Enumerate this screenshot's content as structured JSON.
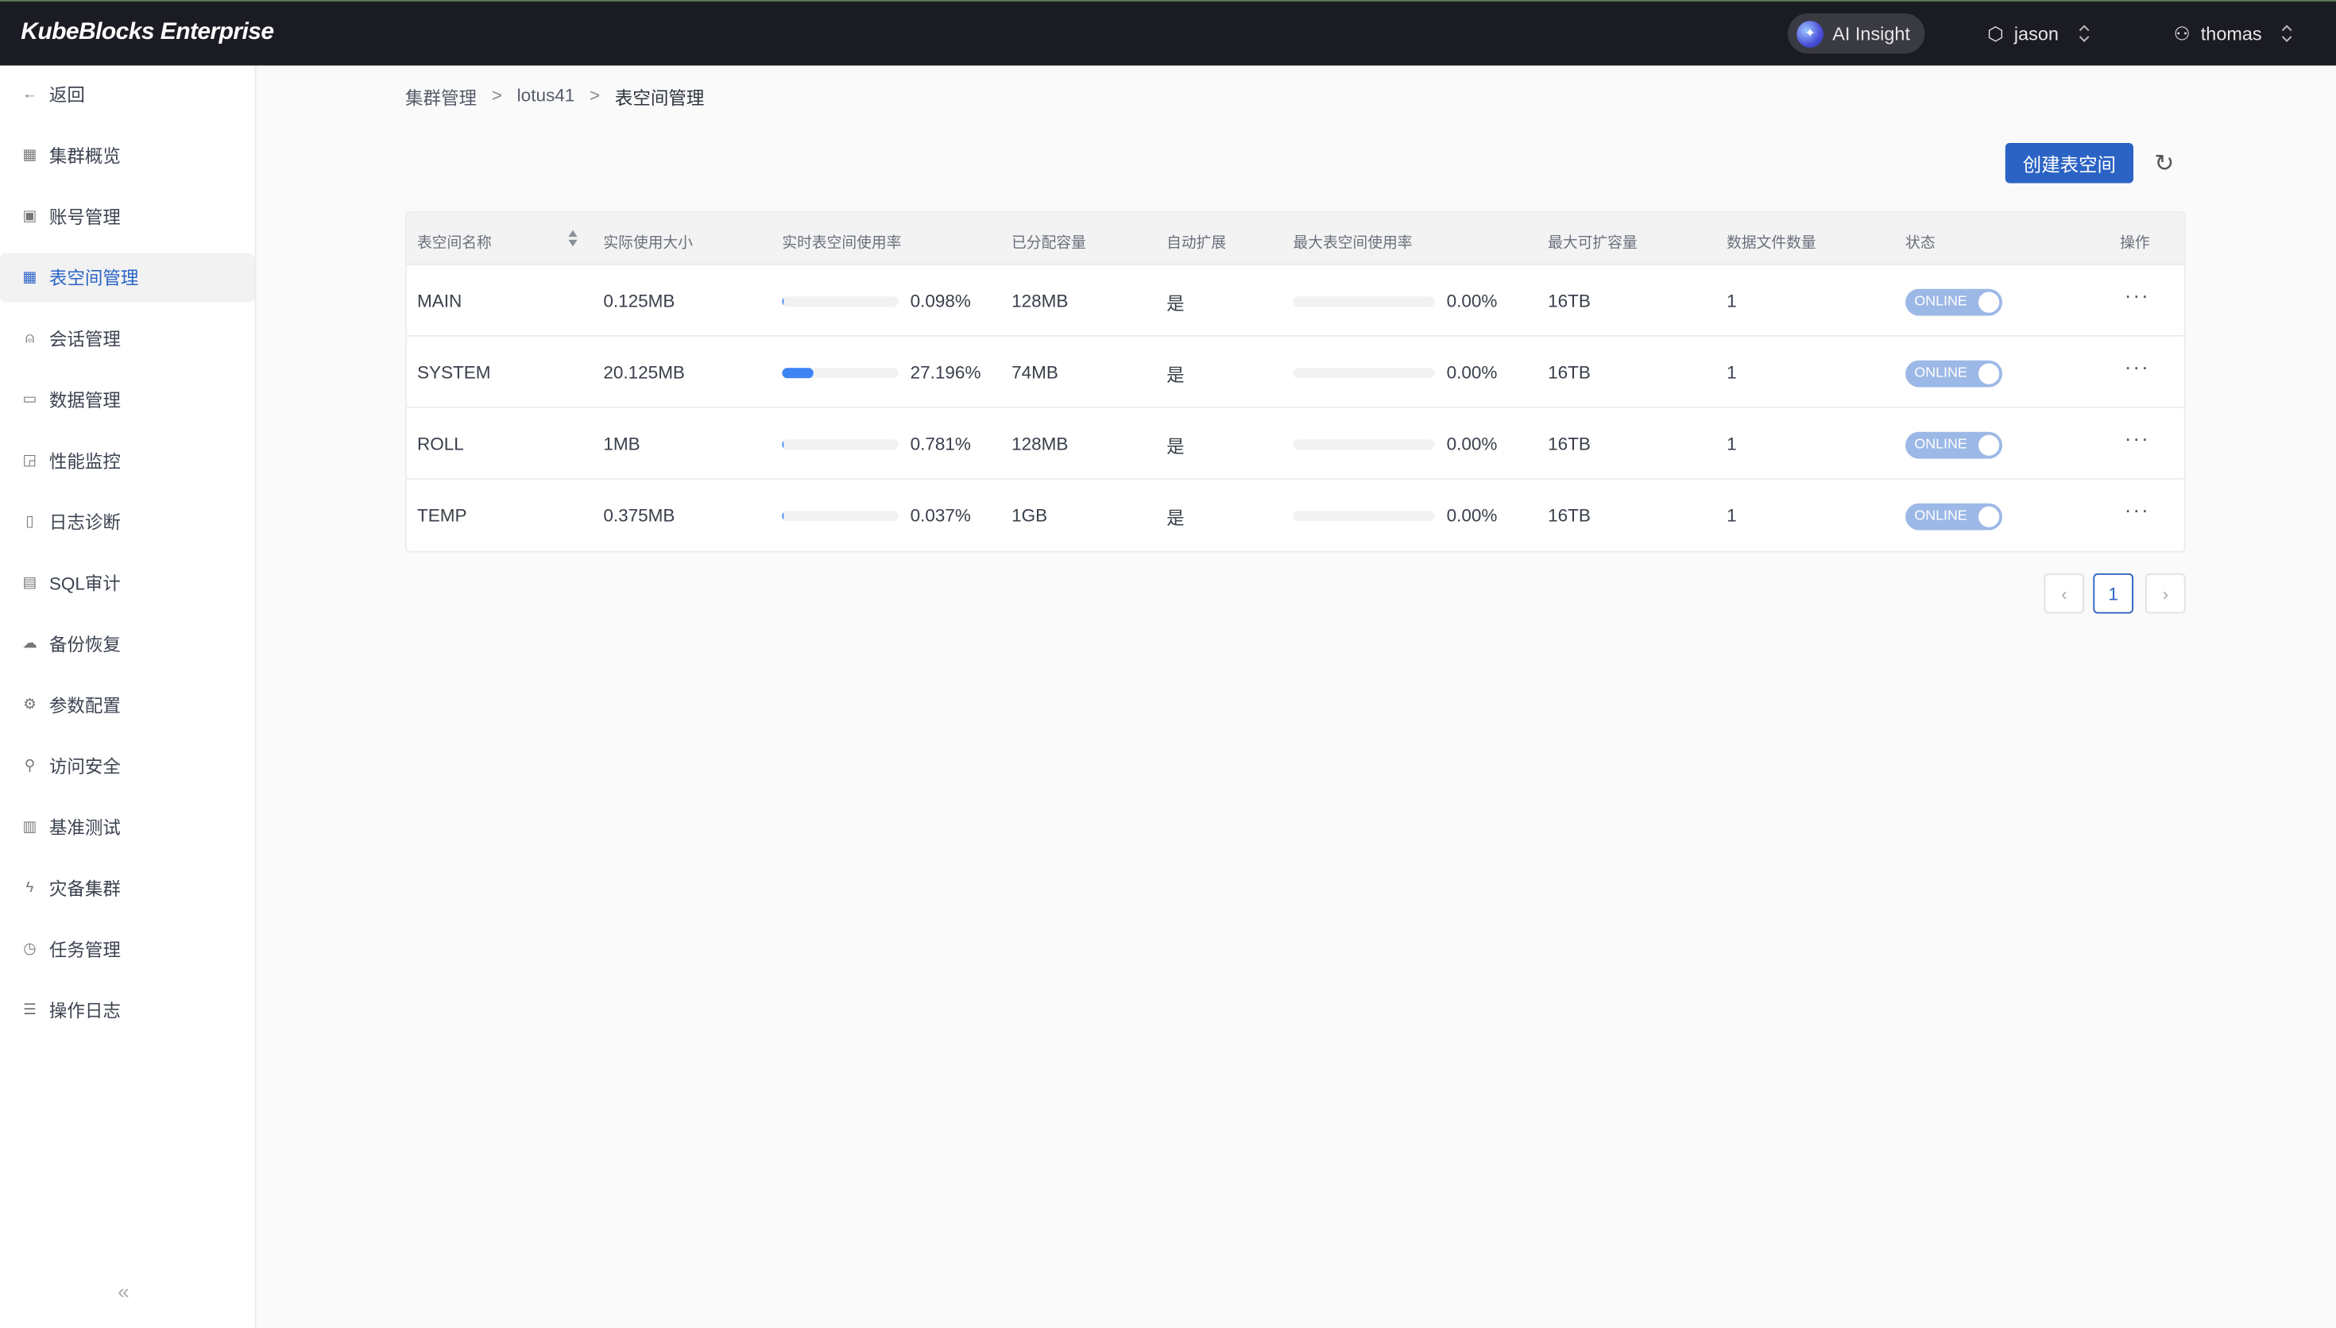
{
  "header": {
    "logo": "KubeBlocks Enterprise",
    "ai_label": "AI Insight",
    "org": "jason",
    "user": "thomas"
  },
  "sidebar": {
    "items": [
      {
        "label": "返回",
        "icon": "arrow-left-icon"
      },
      {
        "label": "集群概览",
        "icon": "grid-icon"
      },
      {
        "label": "账号管理",
        "icon": "account-icon"
      },
      {
        "label": "表空间管理",
        "icon": "table-icon",
        "active": true
      },
      {
        "label": "会话管理",
        "icon": "session-icon"
      },
      {
        "label": "数据管理",
        "icon": "data-icon"
      },
      {
        "label": "性能监控",
        "icon": "chart-icon"
      },
      {
        "label": "日志诊断",
        "icon": "file-icon"
      },
      {
        "label": "SQL审计",
        "icon": "audit-icon"
      },
      {
        "label": "备份恢复",
        "icon": "cloud-icon"
      },
      {
        "label": "参数配置",
        "icon": "gear-icon"
      },
      {
        "label": "访问安全",
        "icon": "security-icon"
      },
      {
        "label": "基准测试",
        "icon": "benchmark-icon"
      },
      {
        "label": "灾备集群",
        "icon": "bolt-icon"
      },
      {
        "label": "任务管理",
        "icon": "clock-icon"
      },
      {
        "label": "操作日志",
        "icon": "list-icon"
      }
    ]
  },
  "breadcrumb": [
    "集群管理",
    "lotus41",
    "表空间管理"
  ],
  "toolbar": {
    "create_label": "创建表空间"
  },
  "table": {
    "columns": [
      "表空间名称",
      "实际使用大小",
      "实时表空间使用率",
      "已分配容量",
      "自动扩展",
      "最大表空间使用率",
      "最大可扩容量",
      "数据文件数量",
      "状态",
      "操作"
    ],
    "rows": [
      {
        "name": "MAIN",
        "used": "0.125MB",
        "rate": "0.098%",
        "rate_pct": 0.098,
        "alloc": "128MB",
        "auto": "是",
        "max_rate": "0.00%",
        "max_rate_pct": 0,
        "max_cap": "16TB",
        "files": "1",
        "status": "ONLINE"
      },
      {
        "name": "SYSTEM",
        "used": "20.125MB",
        "rate": "27.196%",
        "rate_pct": 27.196,
        "alloc": "74MB",
        "auto": "是",
        "max_rate": "0.00%",
        "max_rate_pct": 0,
        "max_cap": "16TB",
        "files": "1",
        "status": "ONLINE"
      },
      {
        "name": "ROLL",
        "used": "1MB",
        "rate": "0.781%",
        "rate_pct": 0.781,
        "alloc": "128MB",
        "auto": "是",
        "max_rate": "0.00%",
        "max_rate_pct": 0,
        "max_cap": "16TB",
        "files": "1",
        "status": "ONLINE"
      },
      {
        "name": "TEMP",
        "used": "0.375MB",
        "rate": "0.037%",
        "rate_pct": 0.037,
        "alloc": "1GB",
        "auto": "是",
        "max_rate": "0.00%",
        "max_rate_pct": 0,
        "max_cap": "16TB",
        "files": "1",
        "status": "ONLINE"
      }
    ]
  },
  "pagination": {
    "current": "1"
  },
  "colors": {
    "accent": "#2b63c4",
    "progress": "#3d84f5",
    "topbar": "#1b1c23"
  }
}
